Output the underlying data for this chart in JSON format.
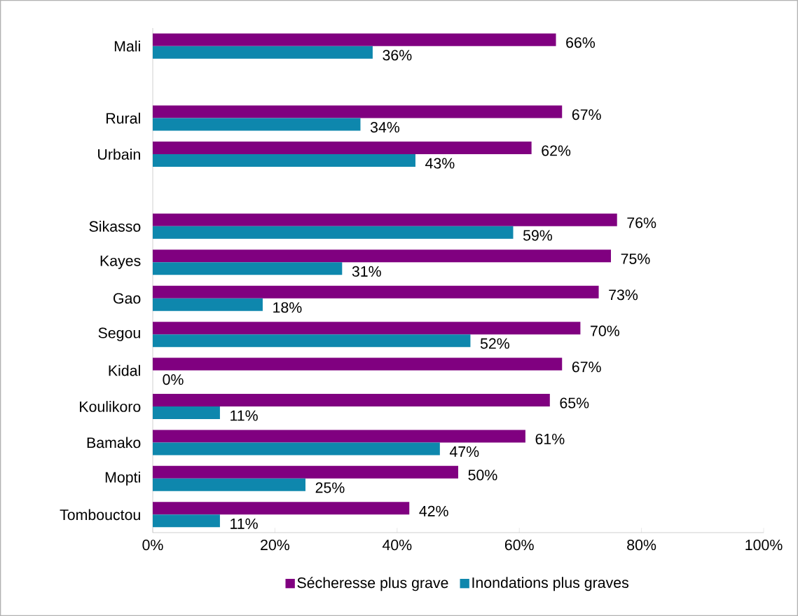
{
  "chart_data": {
    "type": "bar",
    "orientation": "horizontal",
    "categories": [
      "Mali",
      null,
      "Rural",
      "Urbain",
      null,
      "Sikasso",
      "Kayes",
      "Gao",
      "Segou",
      "Kidal",
      "Koulikoro",
      "Bamako",
      "Mopti",
      "Tombouctou"
    ],
    "series": [
      {
        "name": "Sécheresse plus grave",
        "color": "#800080",
        "values": [
          66,
          null,
          67,
          62,
          null,
          76,
          75,
          73,
          70,
          67,
          65,
          61,
          50,
          42
        ],
        "value_labels": [
          "66%",
          null,
          "67%",
          "62%",
          null,
          "76%",
          "75%",
          "73%",
          "70%",
          "67%",
          "65%",
          "61%",
          "50%",
          "42%"
        ]
      },
      {
        "name": "Inondations plus graves",
        "color": "#0e87ad",
        "values": [
          36,
          null,
          34,
          43,
          null,
          59,
          31,
          18,
          52,
          0,
          11,
          47,
          25,
          11
        ],
        "value_labels": [
          "36%",
          null,
          "34%",
          "43%",
          null,
          "59%",
          "31%",
          "18%",
          "52%",
          "0%",
          "11%",
          "47%",
          "25%",
          "11%"
        ]
      }
    ],
    "xlim": [
      0,
      100
    ],
    "xticks": [
      {
        "value": 0,
        "label": "0%"
      },
      {
        "value": 20,
        "label": "20%"
      },
      {
        "value": 40,
        "label": "40%"
      },
      {
        "value": 60,
        "label": "60%"
      },
      {
        "value": 80,
        "label": "80%"
      },
      {
        "value": 100,
        "label": "100%"
      }
    ],
    "legend": "bottom",
    "grid": false
  }
}
